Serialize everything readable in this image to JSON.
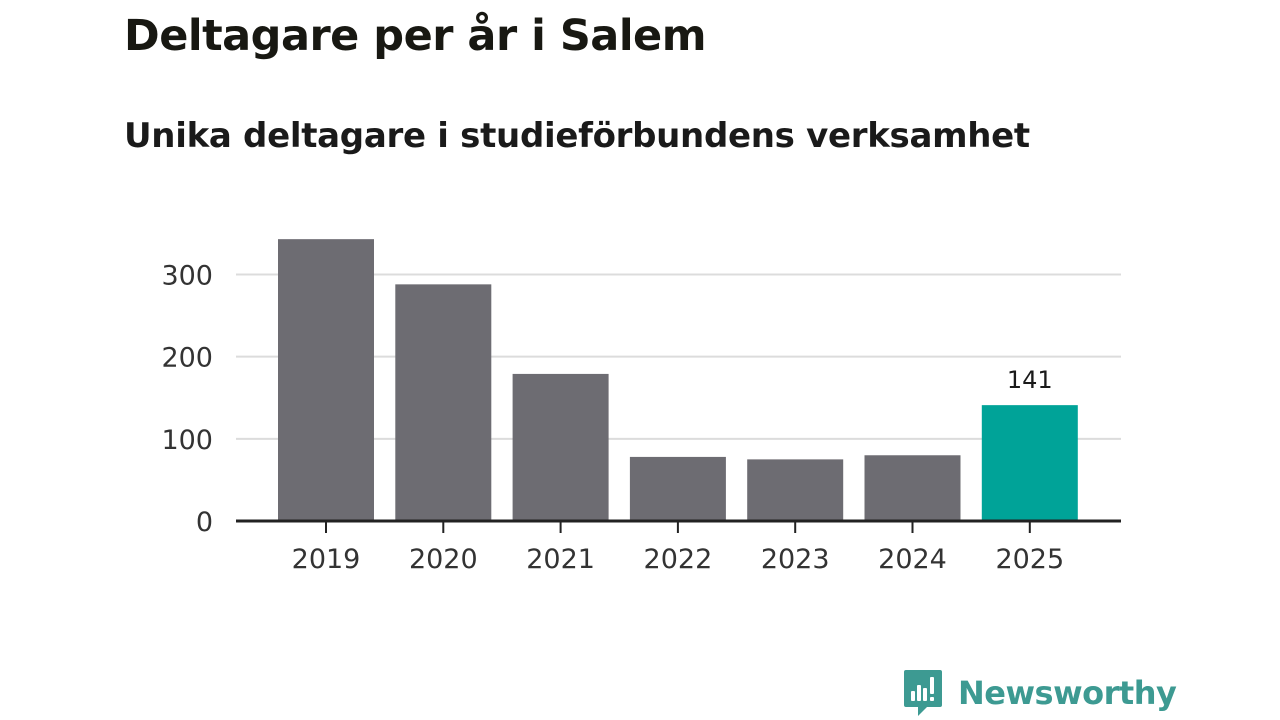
{
  "title": "Deltagare per år i Salem",
  "subtitle": "Unika deltagare i studieförbundens verksamhet",
  "brand": {
    "name": "Newsworthy",
    "icon": "newsworthy-logo-icon",
    "color": "#3d9a92"
  },
  "colors": {
    "bar": "#6d6c72",
    "highlight": "#00a398",
    "grid": "#dcdcdc",
    "axis": "#222222"
  },
  "chart_data": {
    "type": "bar",
    "title": "Deltagare per år i Salem",
    "subtitle": "Unika deltagare i studieförbundens verksamhet",
    "xlabel": "",
    "ylabel": "",
    "categories": [
      "2019",
      "2020",
      "2021",
      "2022",
      "2023",
      "2024",
      "2025"
    ],
    "values": [
      343,
      288,
      179,
      78,
      75,
      80,
      141
    ],
    "highlight_index": 6,
    "data_labels": [
      null,
      null,
      null,
      null,
      null,
      null,
      "141"
    ],
    "y_ticks": [
      0,
      100,
      200,
      300
    ],
    "y_tick_labels": [
      "0",
      "100",
      "200",
      "300"
    ],
    "ylim": [
      0,
      330
    ],
    "grid": true,
    "legend": "none"
  }
}
